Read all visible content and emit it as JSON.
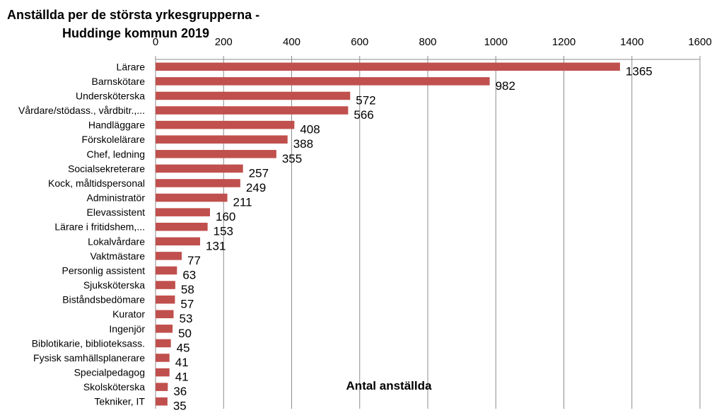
{
  "chart_data": {
    "type": "bar",
    "orientation": "horizontal",
    "title_line1": "Anställda per de största yrkesgrupperna -",
    "title_line2": "Huddinge kommun 2019",
    "xlabel": "Antal anställda",
    "ylabel": "",
    "xlim": [
      0,
      1600
    ],
    "xticks": [
      "0",
      "200",
      "400",
      "600",
      "800",
      "1000",
      "1200",
      "1400",
      "1600"
    ],
    "grid": "vertical",
    "bar_color": "#c0504d",
    "categories": [
      "Lärare",
      "Barnskötare",
      "Undersköterska",
      "Vårdare/stödass., vårdbitr.,...",
      "Handläggare",
      "Förskolelärare",
      "Chef, ledning",
      "Socialsekreterare",
      "Kock, måltidspersonal",
      "Administratör",
      "Elevassistent",
      "Lärare i fritidshem,...",
      "Lokalvårdare",
      "Vaktmästare",
      "Personlig assistent",
      "Sjuksköterska",
      "Biståndsbedömare",
      "Kurator",
      "Ingenjör",
      "Biblotikarie, biblioteksass.",
      "Fysisk samhällsplanerare",
      "Specialpedagog",
      "Skolsköterska",
      "Tekniker, IT"
    ],
    "values": [
      1365,
      982,
      572,
      566,
      408,
      388,
      355,
      257,
      249,
      211,
      160,
      153,
      131,
      77,
      63,
      58,
      57,
      53,
      50,
      45,
      41,
      41,
      36,
      35
    ]
  }
}
